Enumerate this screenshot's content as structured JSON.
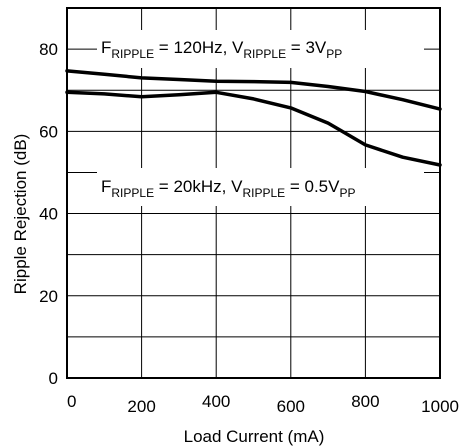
{
  "chart_data": {
    "type": "line",
    "title": "",
    "xlabel": "Load Current (mA)",
    "ylabel": "Ripple Rejection (dB)",
    "xlim": [
      0,
      1000
    ],
    "ylim": [
      0,
      90
    ],
    "x_ticks": [
      "0",
      "200",
      "400",
      "600",
      "800",
      "1000"
    ],
    "y_ticks": [
      "0",
      "20",
      "40",
      "60",
      "80"
    ],
    "grid": true,
    "series": [
      {
        "name": "F_RIPPLE = 120Hz, V_RIPPLE = 3V_PP",
        "x": [
          0,
          100,
          200,
          300,
          400,
          500,
          600,
          700,
          800,
          900,
          1000
        ],
        "y": [
          74.7,
          73.9,
          73.0,
          72.6,
          72.2,
          72.1,
          71.9,
          70.9,
          69.7,
          67.7,
          65.4
        ]
      },
      {
        "name": "F_RIPPLE = 20kHz, V_RIPPLE = 0.5V_PP",
        "x": [
          0,
          100,
          200,
          300,
          400,
          500,
          600,
          700,
          800,
          900,
          1000
        ],
        "y": [
          69.5,
          69.1,
          68.4,
          68.9,
          69.5,
          67.9,
          65.7,
          62.0,
          56.7,
          53.7,
          51.8
        ]
      }
    ],
    "annotations": {
      "top": {
        "f": "F",
        "f_sub": "RIPPLE",
        "f_val": " = 120Hz, V",
        "v_sub": "RIPPLE",
        "v_val": " = 3V",
        "pp_sub": "PP"
      },
      "bottom": {
        "f": "F",
        "f_sub": "RIPPLE",
        "f_val": " = 20kHz, V",
        "v_sub": "RIPPLE",
        "v_val": " = 0.5V",
        "pp_sub": "PP"
      }
    }
  }
}
